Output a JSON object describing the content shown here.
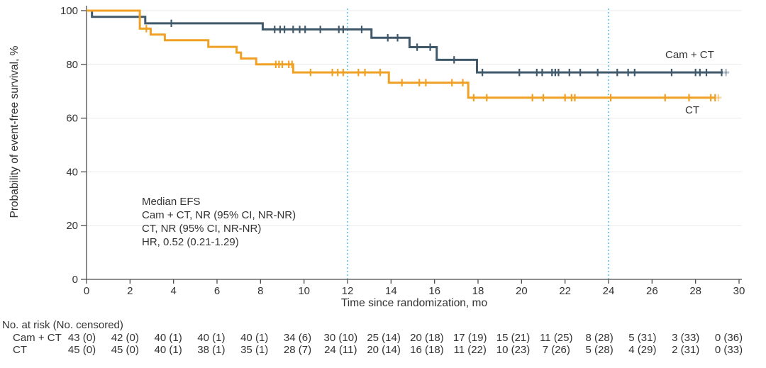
{
  "figure": {
    "x_title": "Time since randomization, mo",
    "y_title": "Probability of event-free survival, %"
  },
  "colors": {
    "cam_ct": "#3f586a",
    "ct": "#f0a125",
    "reference_line": "#56c1e8",
    "gridline": "#e9e9e9",
    "axis": "#4d4d4d",
    "text": "#333333"
  },
  "chart_data": {
    "type": "line",
    "subtype": "kaplan-meier-step",
    "title": "",
    "xlabel": "Time since randomization, mo",
    "ylabel": "Probability of event-free survival, %",
    "xlim": [
      0,
      30
    ],
    "ylim": [
      0,
      100
    ],
    "xticks": [
      0,
      2,
      4,
      6,
      8,
      10,
      12,
      14,
      16,
      18,
      20,
      22,
      24,
      26,
      28,
      30
    ],
    "yticks": [
      0,
      20,
      40,
      60,
      80,
      100
    ],
    "grid": "horizontal",
    "legend_position": "inline-right-of-curves",
    "reference_lines": {
      "x": [
        12,
        24
      ],
      "style": "dotted",
      "color": "#56c1e8"
    },
    "annotations": [
      "Median EFS",
      "Cam + CT, NR (95% CI, NR-NR)",
      "CT, NR (95% CI, NR-NR)",
      "HR, 0.52 (0.21-1.29)"
    ],
    "series": [
      {
        "name": "Cam + CT",
        "color": "#3f586a",
        "steps": [
          [
            0,
            100
          ],
          [
            0.25,
            97.7
          ],
          [
            2.7,
            95.3
          ],
          [
            8.1,
            93.0
          ],
          [
            13.1,
            89.9
          ],
          [
            14.85,
            86.4
          ],
          [
            16.1,
            81.7
          ],
          [
            17.95,
            77.0
          ]
        ],
        "censor_times": [
          3.9,
          8.65,
          8.9,
          9.1,
          9.5,
          9.8,
          10.05,
          10.75,
          11.6,
          11.8,
          12.65,
          13.85,
          14.3,
          15.2,
          15.8,
          16.9,
          18.2,
          19.9,
          20.7,
          20.95,
          21.4,
          21.55,
          21.7,
          22.2,
          22.7,
          23.5,
          24.4,
          24.9,
          25.2,
          26.9,
          28.0,
          28.2,
          28.5,
          29.2
        ],
        "end_time": 29.25,
        "fade_end_time": 29.55,
        "fade_censor_time": 29.4
      },
      {
        "name": "CT",
        "color": "#f0a125",
        "steps": [
          [
            0,
            100
          ],
          [
            2.45,
            93.3
          ],
          [
            2.95,
            91.1
          ],
          [
            3.6,
            89.0
          ],
          [
            5.6,
            86.5
          ],
          [
            6.9,
            84.4
          ],
          [
            7.1,
            82.2
          ],
          [
            7.8,
            80.0
          ],
          [
            9.5,
            77.0
          ],
          [
            13.9,
            73.2
          ],
          [
            17.55,
            67.6
          ]
        ],
        "censor_times": [
          2.75,
          8.7,
          8.85,
          9.0,
          9.3,
          9.45,
          10.3,
          11.3,
          11.55,
          11.8,
          12.5,
          12.8,
          13.5,
          14.5,
          15.3,
          15.6,
          16.8,
          17.3,
          17.8,
          18.4,
          20.5,
          21.0,
          22.0,
          22.3,
          22.45,
          24.1,
          26.6,
          27.7,
          28.7,
          28.9
        ],
        "end_time": 28.9,
        "fade_end_time": 29.2,
        "fade_censor_time": 29.05
      }
    ],
    "risk_table": {
      "header": "No. at risk (No. censored)",
      "time_points": [
        0,
        2,
        4,
        6,
        8,
        10,
        12,
        14,
        16,
        18,
        20,
        22,
        24,
        26,
        28,
        30
      ],
      "rows": [
        {
          "label": "Cam + CT",
          "values": [
            "43 (0)",
            "42 (0)",
            "40 (1)",
            "40 (1)",
            "40 (1)",
            "34 (6)",
            "30 (10)",
            "25 (14)",
            "20 (18)",
            "17 (19)",
            "15 (21)",
            "11 (25)",
            "8 (28)",
            "5 (31)",
            "3 (33)",
            "0 (36)"
          ]
        },
        {
          "label": "CT",
          "values": [
            "45 (0)",
            "45 (0)",
            "40 (1)",
            "38 (1)",
            "35 (1)",
            "28 (7)",
            "24 (11)",
            "20 (14)",
            "16 (18)",
            "11 (22)",
            "10 (23)",
            "7 (26)",
            "5 (28)",
            "4 (29)",
            "2 (31)",
            "0 (33)"
          ]
        }
      ]
    }
  }
}
